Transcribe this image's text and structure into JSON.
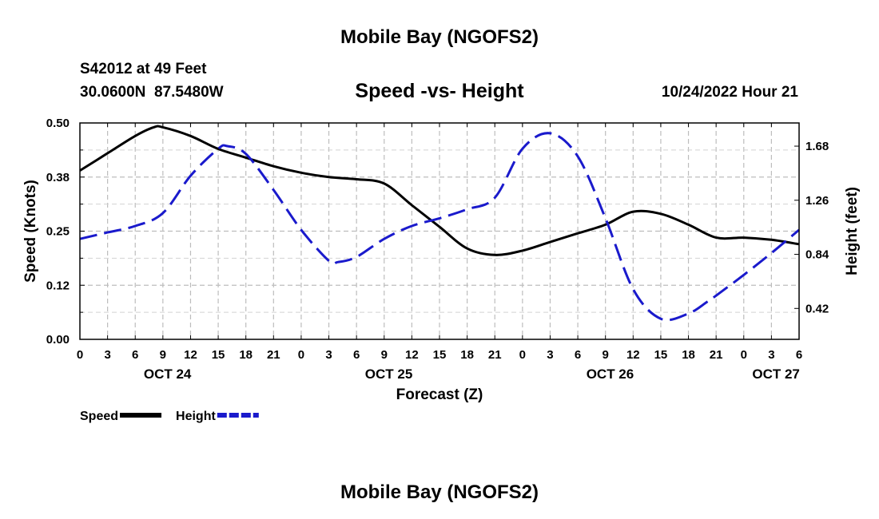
{
  "page": {
    "title": "Mobile Bay (NGOFS2)",
    "footer_title": "Mobile Bay (NGOFS2)",
    "station": "S42012 at 49 Feet",
    "coords": "30.0600N  87.5480W",
    "subtitle": "Speed -vs- Height",
    "run": "10/24/2022 Hour 21"
  },
  "chart_data": {
    "type": "line",
    "title": "Speed -vs- Height",
    "xlabel": "Forecast (Z)",
    "ylabel": "Speed (Knots)",
    "y2label": "Height (feet)",
    "x_range_hours": [
      0,
      78
    ],
    "x_ticks": [
      "0",
      "3",
      "6",
      "9",
      "12",
      "15",
      "18",
      "21",
      "0",
      "3",
      "6",
      "9",
      "12",
      "15",
      "18",
      "21",
      "0",
      "3",
      "6",
      "9",
      "12",
      "15",
      "18",
      "21",
      "0",
      "3",
      "6"
    ],
    "date_labels": [
      {
        "label": "OCT 24",
        "hour": 9.5
      },
      {
        "label": "OCT 25",
        "hour": 33.5
      },
      {
        "label": "OCT 26",
        "hour": 57.5
      },
      {
        "label": "OCT 27",
        "hour": 75.5
      }
    ],
    "ylim": [
      0,
      0.5
    ],
    "yticks": [
      "0.00",
      "0.12",
      "0.25",
      "0.38",
      "0.50"
    ],
    "y2lim": [
      0.18,
      1.86
    ],
    "y2ticks": [
      "0.42",
      "0.84",
      "1.26",
      "1.68"
    ],
    "grid": true,
    "legend_placement": "bottom-left",
    "series": [
      {
        "name": "Speed",
        "axis": "left",
        "color": "#000000",
        "style": "solid",
        "x": [
          0,
          3,
          6,
          8,
          9,
          12,
          15,
          18,
          21,
          24,
          27,
          30,
          33,
          36,
          39,
          42,
          45,
          48,
          51,
          54,
          57,
          60,
          63,
          66,
          69,
          72,
          75,
          78
        ],
        "values": [
          0.39,
          0.43,
          0.47,
          0.49,
          0.49,
          0.47,
          0.44,
          0.42,
          0.4,
          0.385,
          0.375,
          0.37,
          0.36,
          0.31,
          0.26,
          0.21,
          0.195,
          0.205,
          0.225,
          0.245,
          0.265,
          0.295,
          0.29,
          0.265,
          0.235,
          0.235,
          0.23,
          0.22
        ]
      },
      {
        "name": "Height",
        "axis": "right",
        "color": "#1a1acc",
        "style": "dashed",
        "x": [
          0,
          3,
          6,
          9,
          12,
          15,
          16,
          18,
          21,
          24,
          27,
          28,
          30,
          33,
          36,
          39,
          42,
          45,
          48,
          51,
          54,
          57,
          60,
          63,
          66,
          68,
          69,
          72,
          75,
          78
        ],
        "values": [
          0.96,
          1.01,
          1.06,
          1.16,
          1.45,
          1.66,
          1.68,
          1.62,
          1.34,
          1.03,
          0.79,
          0.78,
          0.82,
          0.96,
          1.06,
          1.12,
          1.19,
          1.28,
          1.66,
          1.78,
          1.6,
          1.12,
          0.57,
          0.34,
          0.38,
          0.47,
          0.52,
          0.68,
          0.85,
          1.03
        ]
      }
    ]
  }
}
